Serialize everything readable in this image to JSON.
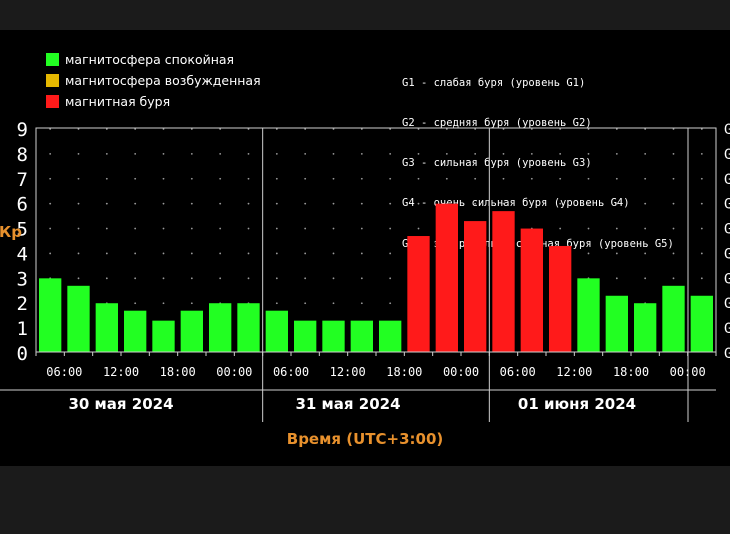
{
  "legend": {
    "items": [
      {
        "label": "магнитосфера спокойная",
        "color": "#22ff22"
      },
      {
        "label": "магнитосфера возбужденная",
        "color": "#e6b800"
      },
      {
        "label": "магнитная буря",
        "color": "#ff1a1a"
      }
    ],
    "g_levels": [
      "G1 - слабая буря (уровень G1)",
      "G2 - средняя буря (уровень G2)",
      "G3 - сильная буря (уровень G3)",
      "G4 - очень сильная буря (уровень G4)",
      "G5 - экстремально сильная буря (уровень G5)"
    ]
  },
  "chart_data": {
    "type": "bar",
    "xlabel": "Время (UTC+3:00)",
    "ylabel": "Кр",
    "ylim": [
      0,
      9
    ],
    "yticks": [
      0,
      1,
      2,
      3,
      4,
      5,
      6,
      7,
      8,
      9
    ],
    "right_tick_char": "G",
    "grid": true,
    "x_tick_labels": [
      "06:00",
      "12:00",
      "18:00",
      "00:00",
      "06:00",
      "12:00",
      "18:00",
      "00:00",
      "06:00",
      "12:00",
      "18:00",
      "00:00"
    ],
    "day_labels": [
      "30 мая 2024",
      "31 мая 2024",
      "01 июня 2024"
    ],
    "values": [
      3.0,
      2.7,
      2.0,
      1.7,
      1.3,
      1.7,
      2.0,
      2.0,
      1.7,
      1.3,
      1.3,
      1.3,
      1.3,
      4.7,
      6.0,
      5.3,
      5.7,
      5.0,
      4.3,
      3.0,
      2.3,
      2.0,
      2.7,
      2.3
    ],
    "colors": [
      "#22ff22",
      "#22ff22",
      "#22ff22",
      "#22ff22",
      "#22ff22",
      "#22ff22",
      "#22ff22",
      "#22ff22",
      "#22ff22",
      "#22ff22",
      "#22ff22",
      "#22ff22",
      "#22ff22",
      "#ff1a1a",
      "#ff1a1a",
      "#ff1a1a",
      "#ff1a1a",
      "#ff1a1a",
      "#ff1a1a",
      "#22ff22",
      "#22ff22",
      "#22ff22",
      "#22ff22",
      "#22ff22"
    ],
    "label_color": "#e8912d"
  }
}
